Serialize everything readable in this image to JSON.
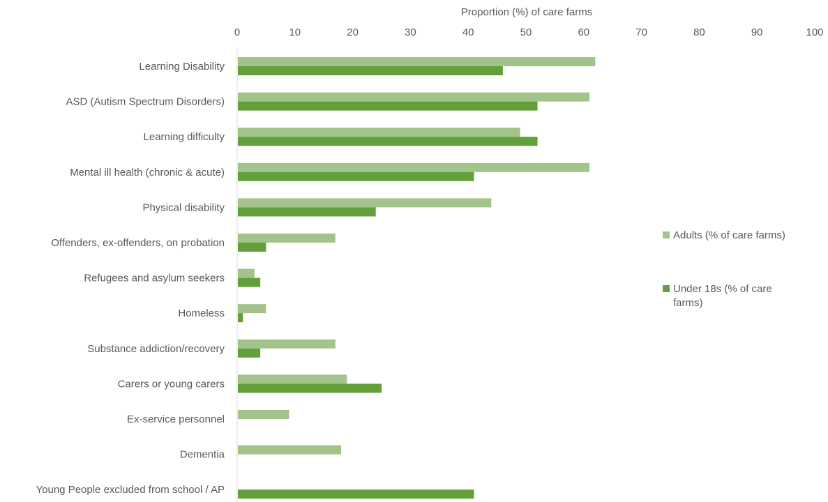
{
  "chart_data": {
    "type": "bar",
    "orientation": "horizontal",
    "xlabel": "Proportion (%) of care farms",
    "xaxis_position": "top",
    "xlim": [
      0,
      100
    ],
    "xticks": [
      "0",
      "10",
      "20",
      "30",
      "40",
      "50",
      "60",
      "70",
      "80",
      "90",
      "100"
    ],
    "grid": false,
    "legend_position": "right",
    "categories": [
      "Learning Disability",
      "ASD (Autism Spectrum Disorders)",
      "Learning difficulty",
      "Mental ill health (chronic & acute)",
      "Physical disability",
      "Offenders, ex-offenders, on probation",
      "Refugees and asylum seekers",
      "Homeless",
      "Substance addiction/recovery",
      "Carers or young carers",
      "Ex-service personnel",
      "Dementia",
      "Young People excluded from school / AP"
    ],
    "series": [
      {
        "name": "Adults (% of care farms)",
        "color": "#a2c48b",
        "values": [
          62,
          61,
          49,
          61,
          44,
          17,
          3,
          5,
          17,
          19,
          9,
          18,
          0
        ]
      },
      {
        "name": "Under 18s (% of care farms)",
        "color": "#63a03c",
        "values": [
          46,
          52,
          52,
          41,
          24,
          5,
          4,
          1,
          4,
          25,
          0,
          0,
          41
        ]
      }
    ]
  },
  "legend": {
    "adults_label": "Adults (% of care farms)",
    "under18_line1": "Under 18s (% of care",
    "under18_line2": "farms)"
  }
}
